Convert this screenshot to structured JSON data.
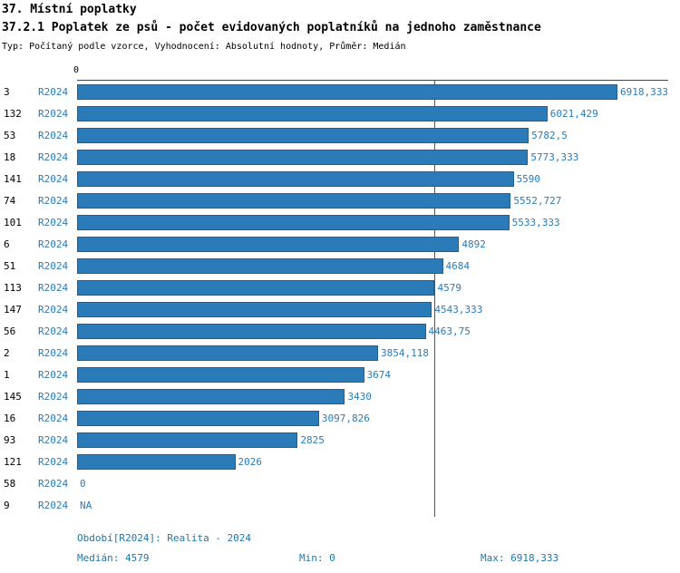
{
  "header": {
    "title": "37. Místní poplatky",
    "subtitle": "37.2.1 Poplatek ze psů - počet evidovaných poplatníků na jednoho zaměstnance",
    "meta": "Typ: Počítaný podle vzorce, Vyhodnocení: Absolutní hodnoty, Průměr: Medián"
  },
  "chart_data": {
    "type": "bar",
    "orientation": "horizontal",
    "axis_zero_label": "0",
    "period_label": "R2024",
    "bar_color": "#2b7bb9",
    "xlim": [
      0,
      6918.333
    ],
    "median_value": 4579,
    "grid": "median-line-only",
    "categories": [
      "3",
      "132",
      "53",
      "18",
      "141",
      "74",
      "101",
      "6",
      "51",
      "113",
      "147",
      "56",
      "2",
      "1",
      "145",
      "16",
      "93",
      "121",
      "58",
      "9"
    ],
    "rows": [
      {
        "id": "3",
        "value": 6918.333,
        "label": "6918,333"
      },
      {
        "id": "132",
        "value": 6021.429,
        "label": "6021,429"
      },
      {
        "id": "53",
        "value": 5782.5,
        "label": "5782,5"
      },
      {
        "id": "18",
        "value": 5773.333,
        "label": "5773,333"
      },
      {
        "id": "141",
        "value": 5590,
        "label": "5590"
      },
      {
        "id": "74",
        "value": 5552.727,
        "label": "5552,727"
      },
      {
        "id": "101",
        "value": 5533.333,
        "label": "5533,333"
      },
      {
        "id": "6",
        "value": 4892,
        "label": "4892"
      },
      {
        "id": "51",
        "value": 4684,
        "label": "4684"
      },
      {
        "id": "113",
        "value": 4579,
        "label": "4579"
      },
      {
        "id": "147",
        "value": 4543.333,
        "label": "4543,333"
      },
      {
        "id": "56",
        "value": 4463.75,
        "label": "4463,75"
      },
      {
        "id": "2",
        "value": 3854.118,
        "label": "3854,118"
      },
      {
        "id": "1",
        "value": 3674,
        "label": "3674"
      },
      {
        "id": "145",
        "value": 3430,
        "label": "3430"
      },
      {
        "id": "16",
        "value": 3097.826,
        "label": "3097,826"
      },
      {
        "id": "93",
        "value": 2825,
        "label": "2825"
      },
      {
        "id": "121",
        "value": 2026,
        "label": "2026"
      },
      {
        "id": "58",
        "value": 0,
        "label": "0"
      },
      {
        "id": "9",
        "value": null,
        "label": "NA"
      }
    ]
  },
  "footer": {
    "period": "Období[R2024]: Realita - 2024",
    "median": "Medián: 4579",
    "min": "Min: 0",
    "max": "Max: 6918,333"
  }
}
